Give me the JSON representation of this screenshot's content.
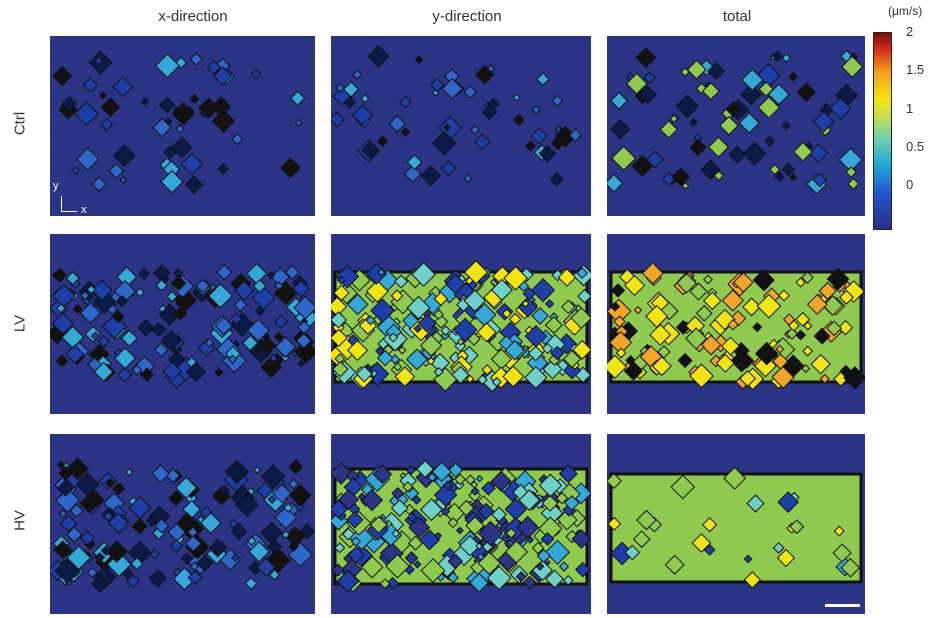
{
  "figure": {
    "columns": [
      "x-direction",
      "y-direction",
      "total"
    ],
    "rows": [
      "Ctrl",
      "LV",
      "HV"
    ],
    "axes_indicator": {
      "y": "y",
      "x": "x"
    }
  },
  "chart_data": {
    "type": "heatmap",
    "colorbar": {
      "unit": "(μm/s)",
      "ticks": [
        {
          "value": 2,
          "label": "2"
        },
        {
          "value": 1.5,
          "label": "1.5"
        },
        {
          "value": 1,
          "label": "1"
        },
        {
          "value": 0.5,
          "label": "0.5"
        },
        {
          "value": 0,
          "label": "0"
        }
      ],
      "colors": [
        "#2b2f86",
        "#2255cf",
        "#23a8d8",
        "#6fd0b0",
        "#c8e04a",
        "#f2e313",
        "#f3a01d",
        "#d5281b",
        "#7a0e0e"
      ]
    },
    "panels": [
      {
        "row": "Ctrl",
        "column": "x-direction",
        "dominant_level": "low",
        "pattern": "sparse patches"
      },
      {
        "row": "Ctrl",
        "column": "y-direction",
        "dominant_level": "low",
        "pattern": "sparse patches"
      },
      {
        "row": "Ctrl",
        "column": "total",
        "dominant_level": "low-mid",
        "pattern": "sparse patches"
      },
      {
        "row": "LV",
        "column": "x-direction",
        "dominant_level": "low",
        "pattern": "dense band"
      },
      {
        "row": "LV",
        "column": "y-direction",
        "dominant_level": "mid-high",
        "pattern": "dense band"
      },
      {
        "row": "LV",
        "column": "total",
        "dominant_level": "high",
        "pattern": "dense band"
      },
      {
        "row": "HV",
        "column": "x-direction",
        "dominant_level": "low",
        "pattern": "dense band"
      },
      {
        "row": "HV",
        "column": "y-direction",
        "dominant_level": "mid",
        "pattern": "dense band"
      },
      {
        "row": "HV",
        "column": "total",
        "dominant_level": "mid-high",
        "pattern": "uniform band"
      }
    ],
    "colors": {
      "background": "#2c3585",
      "mid": "#8fc94f",
      "high": "#f2e313",
      "low_contour": "#111111"
    }
  }
}
